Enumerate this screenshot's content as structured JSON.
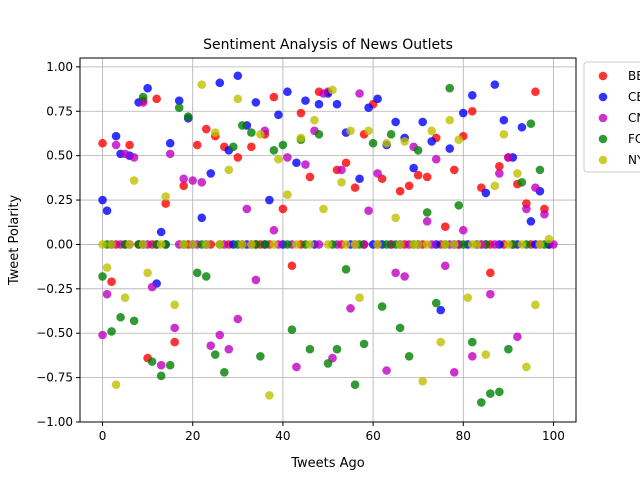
{
  "chart_data": {
    "type": "scatter",
    "title": "Sentiment Analysis of News Outlets",
    "xlabel": "Tweets Ago",
    "ylabel": "Tweet Polarity",
    "xlim": [
      -5,
      105
    ],
    "ylim": [
      -1.0,
      1.05
    ],
    "xticks": [
      0,
      20,
      40,
      60,
      80,
      100
    ],
    "yticks": [
      -1.0,
      -0.75,
      -0.5,
      -0.25,
      0.0,
      0.25,
      0.5,
      0.75,
      1.0
    ],
    "xtick_labels": [
      "0",
      "20",
      "40",
      "60",
      "80",
      "100"
    ],
    "ytick_labels": [
      "−1.00",
      "−0.75",
      "−0.50",
      "−0.25",
      "0.00",
      "0.25",
      "0.50",
      "0.75",
      "1.00"
    ],
    "grid": true,
    "legend_position": "outside-top-right",
    "series": [
      {
        "name": "BBC",
        "color": "#ff0000",
        "x": [
          0,
          2,
          6,
          9,
          10,
          12,
          14,
          16,
          18,
          21,
          23,
          25,
          27,
          30,
          33,
          36,
          38,
          40,
          42,
          44,
          46,
          48,
          50,
          52,
          54,
          56,
          58,
          60,
          62,
          66,
          68,
          70,
          72,
          74,
          76,
          78,
          80,
          82,
          84,
          86,
          88,
          90,
          92,
          94,
          96,
          98
        ],
        "y": [
          0.57,
          -0.21,
          0.56,
          0.81,
          -0.64,
          0.82,
          0.23,
          -0.55,
          0.33,
          0.56,
          0.65,
          0.61,
          0.55,
          0.49,
          0.55,
          0.62,
          0.83,
          0.2,
          -0.12,
          0.74,
          0.38,
          0.86,
          0.86,
          0.42,
          0.46,
          0.32,
          0.62,
          0.79,
          0.37,
          0.3,
          0.33,
          0.39,
          0.38,
          0.6,
          0.1,
          0.42,
          0.61,
          0.75,
          0.32,
          -0.16,
          0.44,
          0.49,
          0.34,
          0.23,
          0.86,
          0.2
        ]
      },
      {
        "name": "CBS",
        "color": "#0000ff",
        "x": [
          0,
          1,
          3,
          4,
          6,
          8,
          10,
          12,
          13,
          15,
          17,
          19,
          22,
          24,
          26,
          28,
          30,
          32,
          34,
          37,
          39,
          41,
          43,
          45,
          48,
          50,
          52,
          54,
          57,
          59,
          61,
          63,
          65,
          67,
          69,
          71,
          73,
          75,
          77,
          80,
          82,
          85,
          87,
          89,
          91,
          93,
          95,
          97
        ],
        "y": [
          0.25,
          0.19,
          0.61,
          0.51,
          0.5,
          0.8,
          0.88,
          -0.22,
          0.07,
          0.57,
          0.81,
          0.71,
          0.15,
          0.4,
          0.91,
          0.53,
          0.95,
          0.67,
          0.8,
          0.25,
          0.73,
          0.86,
          0.46,
          0.81,
          0.79,
          0.85,
          0.79,
          0.63,
          0.37,
          0.77,
          0.82,
          0.56,
          0.69,
          0.6,
          0.43,
          0.69,
          0.58,
          -0.37,
          0.54,
          0.74,
          0.84,
          0.29,
          0.9,
          0.7,
          0.49,
          0.66,
          0.13,
          0.3
        ]
      },
      {
        "name": "CNN",
        "color": "#bf00bf",
        "x": [
          0,
          1,
          3,
          5,
          7,
          9,
          11,
          13,
          15,
          16,
          18,
          20,
          22,
          24,
          26,
          28,
          30,
          32,
          34,
          36,
          38,
          41,
          43,
          45,
          47,
          49,
          51,
          53,
          55,
          57,
          59,
          61,
          63,
          65,
          67,
          69,
          72,
          74,
          76,
          78,
          80,
          82,
          84,
          86,
          88,
          90,
          92,
          94,
          96,
          98
        ],
        "y": [
          -0.51,
          -0.28,
          0.56,
          0.51,
          0.49,
          0.8,
          -0.24,
          -0.68,
          0.51,
          -0.47,
          0.37,
          0.36,
          0.35,
          -0.57,
          -0.51,
          -0.59,
          -0.42,
          0.2,
          -0.2,
          0.64,
          0.08,
          0.49,
          -0.69,
          0.45,
          0.64,
          0.85,
          -0.64,
          0.42,
          -0.36,
          0.85,
          0.19,
          0.4,
          -0.71,
          -0.16,
          -0.18,
          0.55,
          0.13,
          0.48,
          -0.12,
          -0.72,
          0.08,
          -0.63,
          0.0,
          -0.28,
          0.4,
          0.49,
          -0.52,
          0.2,
          0.32,
          0.17
        ]
      },
      {
        "name": "FOX",
        "color": "#008000",
        "x": [
          0,
          2,
          4,
          7,
          9,
          11,
          13,
          15,
          17,
          19,
          21,
          23,
          25,
          27,
          29,
          31,
          33,
          35,
          38,
          40,
          42,
          44,
          46,
          48,
          50,
          52,
          54,
          56,
          58,
          60,
          62,
          64,
          66,
          68,
          70,
          72,
          74,
          77,
          79,
          82,
          84,
          86,
          88,
          90,
          93,
          95,
          97
        ],
        "y": [
          -0.18,
          -0.49,
          -0.41,
          -0.43,
          0.83,
          -0.66,
          -0.74,
          -0.68,
          0.77,
          0.72,
          -0.16,
          -0.18,
          -0.62,
          -0.72,
          0.55,
          0.67,
          0.63,
          -0.63,
          0.53,
          0.56,
          -0.48,
          0.59,
          -0.59,
          0.62,
          -0.67,
          -0.59,
          -0.14,
          -0.79,
          -0.56,
          0.57,
          -0.35,
          0.62,
          -0.47,
          -0.63,
          0.53,
          0.18,
          -0.33,
          0.88,
          0.22,
          -0.55,
          -0.89,
          -0.84,
          -0.83,
          -0.59,
          0.35,
          0.68,
          0.42
        ]
      },
      {
        "name": "NYT",
        "color": "#bfbf00",
        "x": [
          0,
          1,
          3,
          5,
          7,
          10,
          14,
          16,
          20,
          22,
          25,
          28,
          30,
          35,
          37,
          39,
          41,
          44,
          47,
          49,
          51,
          53,
          55,
          57,
          59,
          63,
          65,
          67,
          69,
          71,
          73,
          75,
          77,
          79,
          81,
          83,
          85,
          87,
          89,
          92,
          94,
          96,
          99
        ],
        "y": [
          0.0,
          -0.13,
          -0.79,
          -0.3,
          0.36,
          -0.16,
          0.27,
          -0.34,
          0.0,
          0.9,
          0.63,
          0.42,
          0.82,
          0.62,
          -0.85,
          0.48,
          0.28,
          0.6,
          0.7,
          0.2,
          0.87,
          0.35,
          0.64,
          -0.3,
          0.64,
          0.57,
          0.15,
          0.58,
          0.0,
          -0.77,
          0.64,
          -0.55,
          0.7,
          0.59,
          -0.3,
          0.0,
          -0.62,
          0.33,
          0.62,
          0.4,
          -0.69,
          -0.34,
          0.03
        ]
      }
    ],
    "zero_points": [
      {
        "series": "BBC",
        "x": [
          3,
          5,
          8,
          11,
          19,
          24,
          28,
          31,
          34,
          35,
          37,
          44,
          53,
          58,
          61,
          64,
          67,
          71,
          75,
          79,
          83,
          86,
          89,
          95,
          99
        ]
      },
      {
        "series": "CBS",
        "x": [
          2,
          9,
          14,
          20,
          23,
          29,
          32,
          36,
          40,
          47,
          55,
          60,
          62,
          66,
          70,
          74,
          78,
          81,
          83,
          88,
          92,
          96,
          99
        ]
      },
      {
        "series": "CNN",
        "x": [
          4,
          6,
          10,
          12,
          17,
          21,
          27,
          33,
          39,
          42,
          48,
          52,
          56,
          58,
          64,
          68,
          73,
          77,
          79,
          85,
          87,
          91,
          97,
          100
        ]
      },
      {
        "series": "FOX",
        "x": [
          1,
          5,
          8,
          12,
          14,
          18,
          22,
          26,
          30,
          34,
          36,
          41,
          45,
          51,
          57,
          63,
          65,
          69,
          76,
          80,
          85,
          91,
          94,
          98
        ]
      },
      {
        "series": "NYT",
        "x": [
          2,
          6,
          9,
          13,
          18,
          23,
          26,
          31,
          33,
          38,
          43,
          46,
          50,
          54,
          56,
          61,
          66,
          70,
          72,
          76,
          78,
          82,
          84,
          90,
          93,
          97
        ]
      }
    ]
  }
}
